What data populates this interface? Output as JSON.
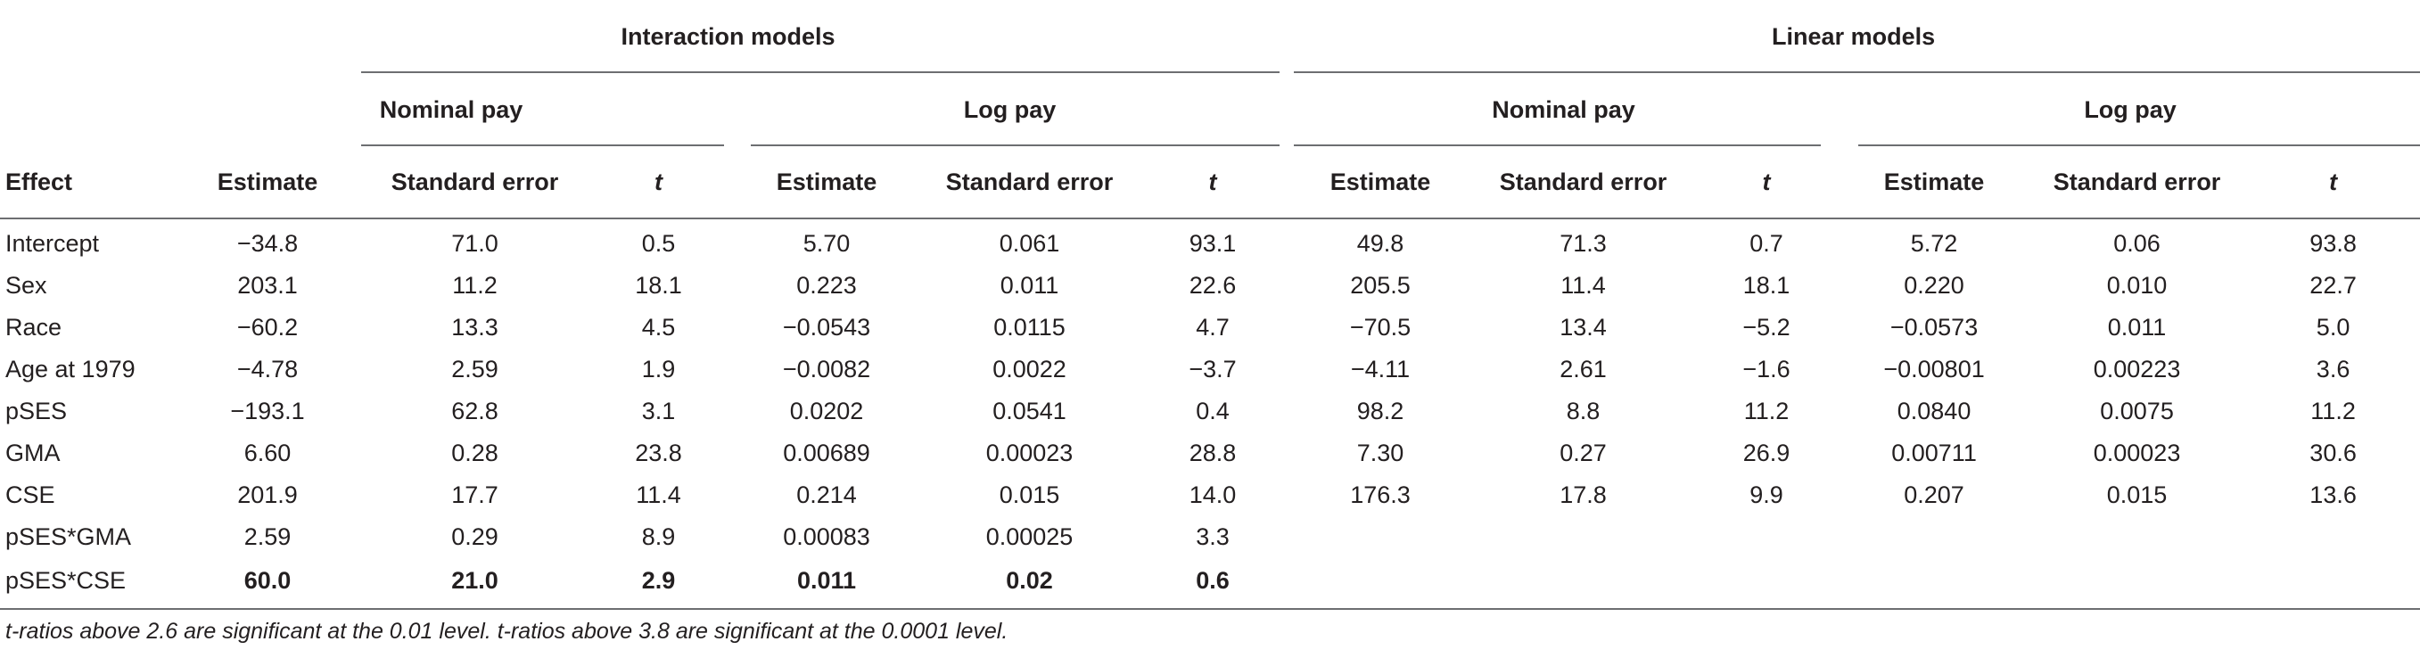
{
  "groups": {
    "interaction": "Interaction models",
    "linear": "Linear models"
  },
  "subgroups": {
    "int_nominal": "Nominal pay",
    "int_log": "Log pay",
    "lin_nominal": "Nominal pay",
    "lin_log": "Log pay"
  },
  "columns": {
    "effect": "Effect",
    "estimate": "Estimate",
    "se": "Standard error",
    "t": "t"
  },
  "rows": [
    {
      "effect": "Intercept",
      "v": [
        "−34.8",
        "71.0",
        "0.5",
        "5.70",
        "0.061",
        "93.1",
        "49.8",
        "71.3",
        "0.7",
        "5.72",
        "0.06",
        "93.8"
      ]
    },
    {
      "effect": "Sex",
      "v": [
        "203.1",
        "11.2",
        "18.1",
        "0.223",
        "0.011",
        "22.6",
        "205.5",
        "11.4",
        "18.1",
        "0.220",
        "0.010",
        "22.7"
      ]
    },
    {
      "effect": "Race",
      "v": [
        "−60.2",
        "13.3",
        "4.5",
        "−0.0543",
        "0.0115",
        "4.7",
        "−70.5",
        "13.4",
        "−5.2",
        "−0.0573",
        "0.011",
        "5.0"
      ]
    },
    {
      "effect": "Age at 1979",
      "v": [
        "−4.78",
        "2.59",
        "1.9",
        "−0.0082",
        "0.0022",
        "−3.7",
        "−4.11",
        "2.61",
        "−1.6",
        "−0.00801",
        "0.00223",
        "3.6"
      ]
    },
    {
      "effect": "pSES",
      "v": [
        "−193.1",
        "62.8",
        "3.1",
        "0.0202",
        "0.0541",
        "0.4",
        "98.2",
        "8.8",
        "11.2",
        "0.0840",
        "0.0075",
        "11.2"
      ]
    },
    {
      "effect": "GMA",
      "v": [
        "6.60",
        "0.28",
        "23.8",
        "0.00689",
        "0.00023",
        "28.8",
        "7.30",
        "0.27",
        "26.9",
        "0.00711",
        "0.00023",
        "30.6"
      ]
    },
    {
      "effect": "CSE",
      "v": [
        "201.9",
        "17.7",
        "11.4",
        "0.214",
        "0.015",
        "14.0",
        "176.3",
        "17.8",
        "9.9",
        "0.207",
        "0.015",
        "13.6"
      ]
    },
    {
      "effect": "pSES*GMA",
      "v": [
        "2.59",
        "0.29",
        "8.9",
        "0.00083",
        "0.00025",
        "3.3",
        "",
        "",
        "",
        "",
        "",
        ""
      ]
    },
    {
      "effect": "pSES*CSE",
      "bold": true,
      "v": [
        "60.0",
        "21.0",
        "2.9",
        "0.011",
        "0.02",
        "0.6",
        "",
        "",
        "",
        "",
        "",
        ""
      ]
    }
  ],
  "note": "t-ratios above 2.6 are significant at the 0.01 level. t-ratios above 3.8 are significant at the 0.0001 level."
}
